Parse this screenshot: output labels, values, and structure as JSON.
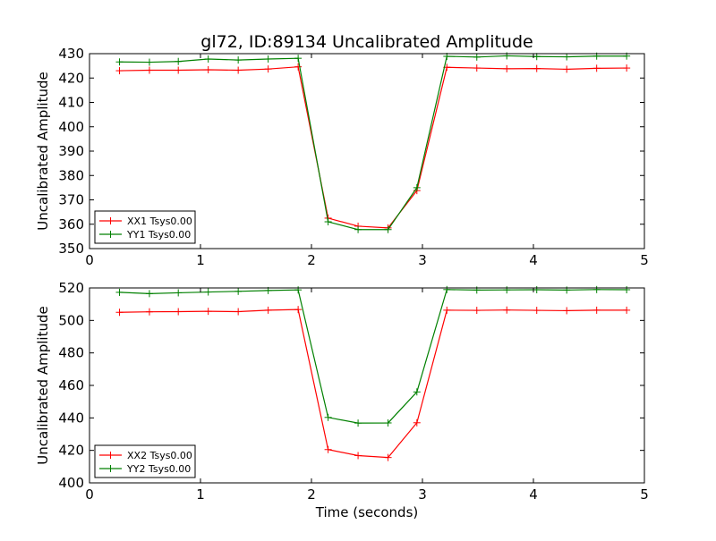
{
  "figure": {
    "title": "gl72, ID:89134 Uncalibrated Amplitude",
    "background": "#ffffff"
  },
  "chart_data": [
    {
      "type": "line",
      "title": "gl72, ID:89134 Uncalibrated Amplitude",
      "xlabel": "",
      "ylabel": "Uncalibrated Amplitude",
      "xlim": [
        0,
        5
      ],
      "ylim": [
        350,
        430
      ],
      "xticks": [
        "0",
        "1",
        "2",
        "3",
        "4",
        "5"
      ],
      "yticks": [
        "350",
        "360",
        "370",
        "380",
        "390",
        "400",
        "410",
        "420",
        "430"
      ],
      "grid": false,
      "legend_position": "lower-left",
      "x": [
        0.27,
        0.54,
        0.8,
        1.07,
        1.34,
        1.61,
        1.88,
        2.15,
        2.42,
        2.69,
        2.95,
        3.22,
        3.49,
        3.76,
        4.03,
        4.3,
        4.57,
        4.84
      ],
      "series": [
        {
          "name": "XX1 Tsys0.00",
          "color": "#ff0000",
          "marker": "+",
          "values": [
            423.0,
            423.2,
            423.2,
            423.4,
            423.2,
            423.7,
            424.6,
            362.5,
            359.2,
            358.5,
            373.8,
            424.4,
            424.1,
            423.8,
            423.9,
            423.6,
            424.0,
            424.1
          ]
        },
        {
          "name": "YY1 Tsys0.00",
          "color": "#008000",
          "marker": "+",
          "values": [
            426.6,
            426.5,
            426.8,
            427.8,
            427.4,
            427.8,
            428.1,
            361.0,
            357.8,
            357.8,
            375.0,
            428.9,
            428.6,
            429.1,
            428.8,
            428.7,
            429.0,
            429.0
          ]
        }
      ]
    },
    {
      "type": "line",
      "title": "",
      "xlabel": "Time (seconds)",
      "ylabel": "Uncalibrated Amplitude",
      "xlim": [
        0,
        5
      ],
      "ylim": [
        400,
        520
      ],
      "xticks": [
        "0",
        "1",
        "2",
        "3",
        "4",
        "5"
      ],
      "yticks": [
        "400",
        "420",
        "440",
        "460",
        "480",
        "500",
        "520"
      ],
      "grid": false,
      "legend_position": "lower-left",
      "x": [
        0.27,
        0.54,
        0.8,
        1.07,
        1.34,
        1.61,
        1.88,
        2.15,
        2.42,
        2.69,
        2.95,
        3.22,
        3.49,
        3.76,
        4.03,
        4.3,
        4.57,
        4.84
      ],
      "series": [
        {
          "name": "XX2 Tsys0.00",
          "color": "#ff0000",
          "marker": "+",
          "values": [
            505.0,
            505.3,
            505.4,
            505.6,
            505.4,
            506.3,
            506.7,
            420.5,
            416.8,
            415.6,
            437.0,
            506.3,
            506.2,
            506.4,
            506.2,
            506.0,
            506.3,
            506.3
          ]
        },
        {
          "name": "YY2 Tsys0.00",
          "color": "#008000",
          "marker": "+",
          "values": [
            517.3,
            516.5,
            517.0,
            517.5,
            517.9,
            518.4,
            518.8,
            440.3,
            436.8,
            436.9,
            456.0,
            519.0,
            518.7,
            518.8,
            518.9,
            518.7,
            519.0,
            518.9
          ]
        }
      ]
    }
  ]
}
